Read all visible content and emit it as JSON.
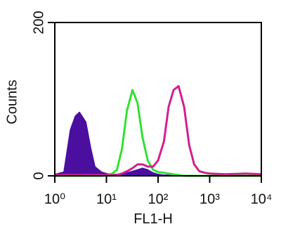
{
  "chart_data": {
    "type": "line",
    "x_label": "FL1-H",
    "y_label": "Counts",
    "xscale": "log",
    "xlim": [
      1,
      10000
    ],
    "xticks": [
      {
        "value": 1,
        "label": "10⁰"
      },
      {
        "value": 10,
        "label": "10¹"
      },
      {
        "value": 100,
        "label": "10²"
      },
      {
        "value": 1000,
        "label": "10³"
      },
      {
        "value": 10000,
        "label": "10⁴"
      }
    ],
    "ylim": [
      0,
      200
    ],
    "yticks": [
      0,
      200
    ],
    "x": [
      1,
      1.5,
      2,
      2.5,
      3,
      4,
      5,
      6,
      8,
      10,
      13,
      16,
      20,
      25,
      32,
      40,
      50,
      63,
      80,
      100,
      130,
      160,
      200,
      250,
      320,
      400,
      500,
      630,
      800,
      1000,
      2000,
      5000,
      10000
    ],
    "series": [
      {
        "color": "#4b0fa0",
        "fill": true,
        "values": [
          2,
          5,
          60,
          78,
          83,
          70,
          35,
          12,
          5,
          3,
          2,
          2,
          3,
          4,
          6,
          8,
          10,
          8,
          4,
          2,
          1,
          1,
          0,
          0,
          0,
          0,
          0,
          0,
          0,
          0,
          0,
          0,
          0
        ]
      },
      {
        "color": "#33e033",
        "fill": false,
        "values": [
          0,
          0,
          0,
          0,
          0,
          0,
          0,
          0,
          0,
          1,
          3,
          8,
          35,
          85,
          112,
          95,
          50,
          20,
          8,
          5,
          4,
          3,
          2,
          1,
          0,
          0,
          0,
          0,
          0,
          0,
          0,
          0,
          0
        ]
      },
      {
        "color": "#d02090",
        "fill": false,
        "values": [
          1,
          1,
          1,
          1,
          1,
          1,
          1,
          1,
          1,
          1,
          1,
          1,
          3,
          6,
          10,
          15,
          15,
          12,
          12,
          20,
          45,
          90,
          112,
          117,
          90,
          40,
          15,
          6,
          4,
          3,
          2,
          3,
          2
        ]
      }
    ]
  }
}
